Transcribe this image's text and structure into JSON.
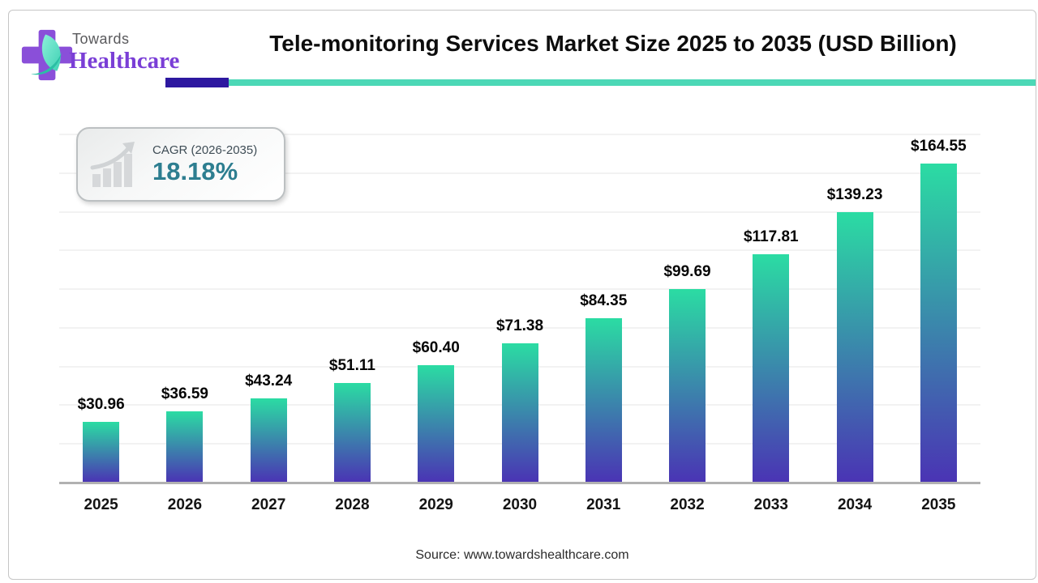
{
  "logo": {
    "line1": "Towards",
    "line2": "Healthcare"
  },
  "header": {
    "title": "Tele-monitoring Services Market Size 2025 to 2035 (USD Billion)"
  },
  "cagr_badge": {
    "label": "CAGR (2026-2035)",
    "value": "18.18%"
  },
  "source": {
    "text": "Source: www.towardshealthcare.com"
  },
  "colors": {
    "accent_purple": "#2d18a0",
    "accent_teal": "#4cd8b6",
    "cagr_value_teal": "#2d7e90",
    "logo_purple": "#8a4fd9",
    "logo_leaf_teal": "#57debf",
    "axis_gray": "#b1b1b1",
    "gridline_gray": "#f2f2f2"
  },
  "chart_data": {
    "type": "bar",
    "title": "Tele-monitoring Services Market Size 2025 to 2035 (USD Billion)",
    "categories": [
      "2025",
      "2026",
      "2027",
      "2028",
      "2029",
      "2030",
      "2031",
      "2032",
      "2033",
      "2034",
      "2035"
    ],
    "values": [
      30.96,
      36.59,
      43.24,
      51.11,
      60.4,
      71.38,
      84.35,
      99.69,
      117.81,
      139.23,
      164.55
    ],
    "value_labels": [
      "$30.96",
      "$36.59",
      "$43.24",
      "$51.11",
      "$60.40",
      "$71.38",
      "$84.35",
      "$99.69",
      "$117.81",
      "$139.23",
      "$164.55"
    ],
    "xlabel": "",
    "ylabel": "USD Billion",
    "ylim": [
      0,
      180
    ],
    "gridline_step": 20,
    "grid": "horizontal",
    "legend": "none",
    "bar_gradient_top": "#2bdca3",
    "bar_gradient_bottom": "#4a34b4"
  }
}
